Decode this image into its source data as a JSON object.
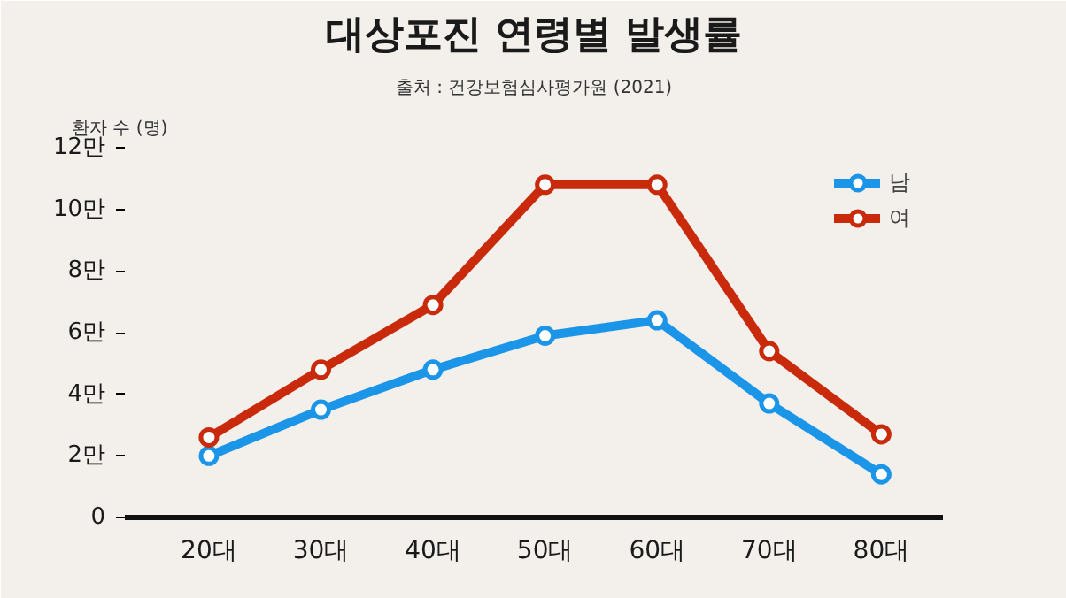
{
  "chart_data": {
    "type": "line",
    "title": "대상포진 연령별 발생률",
    "ylabel": "환자 수 (명)",
    "annotations": [
      "출처 : 건강보험심사평가원 (2021)"
    ],
    "categories": [
      "20대",
      "30대",
      "40대",
      "50대",
      "60대",
      "70대",
      "80대"
    ],
    "series": [
      {
        "name": "남",
        "color": "#1b95e8",
        "values": [
          2.0,
          3.5,
          4.8,
          5.9,
          6.4,
          3.7,
          1.4
        ]
      },
      {
        "name": "여",
        "color": "#c92a0c",
        "values": [
          2.6,
          4.8,
          6.9,
          10.8,
          10.8,
          5.4,
          2.7
        ]
      }
    ],
    "ylim": [
      0,
      12
    ],
    "yticks": [
      0,
      {
        "value": 2,
        "label": "2만"
      },
      {
        "value": 4,
        "label": "4만"
      },
      {
        "value": 6,
        "label": "6만"
      },
      {
        "value": 8,
        "label": "8만"
      },
      {
        "value": 10,
        "label": "10만"
      },
      {
        "value": 12,
        "label": "12만"
      }
    ],
    "grid": false,
    "legend": "top right",
    "marker": "circle",
    "line_style": "solid"
  }
}
